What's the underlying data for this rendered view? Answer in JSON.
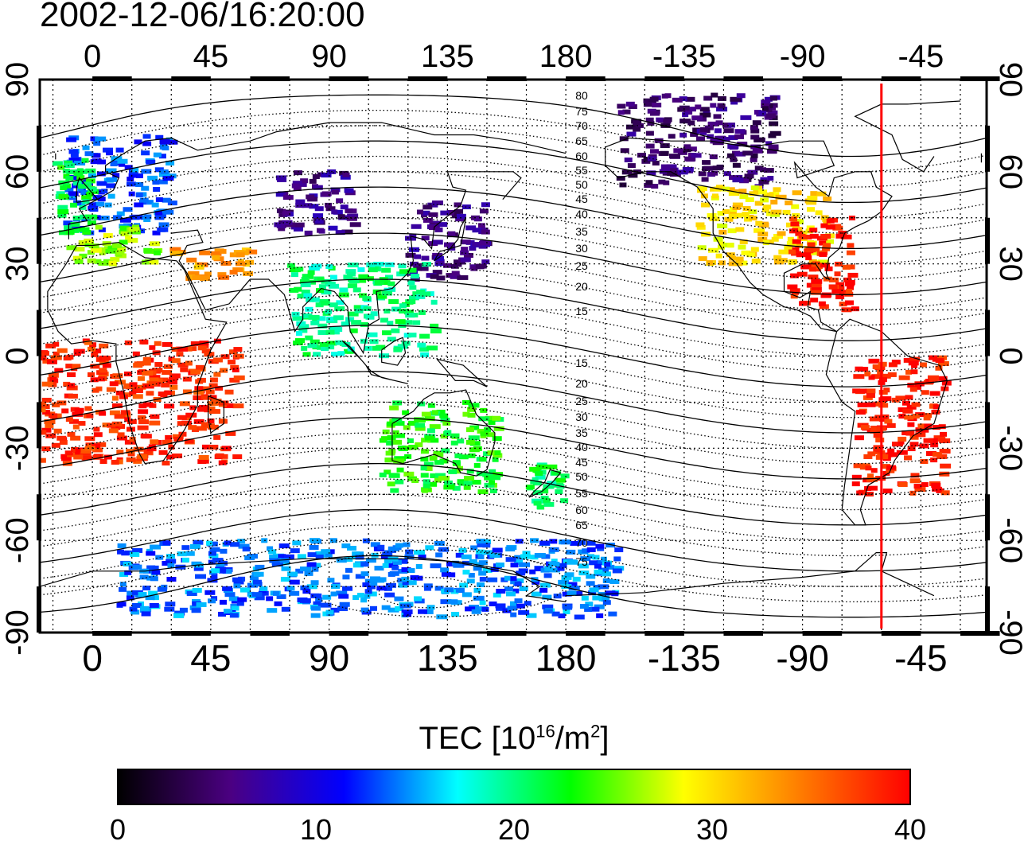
{
  "title": "2002-12-06/16:20:00",
  "map": {
    "projection": "equirectangular",
    "lon_range": [
      -20,
      340
    ],
    "lat_range": [
      -90,
      90
    ],
    "lon_ticks": [
      0,
      45,
      90,
      135,
      180,
      225,
      270,
      315
    ],
    "lon_tick_labels": [
      "0",
      "45",
      "90",
      "135",
      "180",
      "-135",
      "-90",
      "-45"
    ],
    "lat_ticks": [
      -90,
      -60,
      -30,
      0,
      30,
      60,
      90
    ],
    "lat_tick_labels": [
      "-90",
      "-60",
      "-30",
      "0",
      "30",
      "60",
      "90"
    ],
    "grid": "dotted 15-degree",
    "marker_longitude": 300,
    "marker_color": "#ff0000",
    "magnetic_latitude_labels": [
      "80",
      "75",
      "70",
      "65",
      "60",
      "55",
      "50",
      "45",
      "40",
      "35",
      "30",
      "25",
      "20",
      "15",
      "15",
      "20",
      "25",
      "30",
      "35",
      "40",
      "45",
      "50",
      "55",
      "60",
      "65",
      "70",
      "75"
    ]
  },
  "colorbar": {
    "label_text": "TEC  [10",
    "label_exp1": "16",
    "label_mid": "/m",
    "label_exp2": "2",
    "label_end": "]",
    "min": 0,
    "max": 40,
    "ticks": [
      "0",
      "10",
      "20",
      "30",
      "40"
    ],
    "colormap": [
      "#000000",
      "#4b0082",
      "#0000ff",
      "#00ffff",
      "#00ff00",
      "#ffff00",
      "#ff8000",
      "#ff0000"
    ]
  },
  "chart_data": {
    "type": "heatmap",
    "title": "2002-12-06/16:20:00",
    "value_label": "TEC [10^16/m^2]",
    "value_range": [
      0,
      40
    ],
    "regions": [
      {
        "lon_range": [
          -10,
          30
        ],
        "lat_range": [
          40,
          72
        ],
        "tec": 13
      },
      {
        "lon_range": [
          -15,
          0
        ],
        "lat_range": [
          40,
          65
        ],
        "tec": 22
      },
      {
        "lon_range": [
          -10,
          25
        ],
        "lat_range": [
          30,
          42
        ],
        "tec": 26
      },
      {
        "lon_range": [
          30,
          60
        ],
        "lat_range": [
          25,
          35
        ],
        "tec": 33
      },
      {
        "lon_range": [
          70,
          100
        ],
        "lat_range": [
          40,
          60
        ],
        "tec": 6
      },
      {
        "lon_range": [
          120,
          150
        ],
        "lat_range": [
          25,
          50
        ],
        "tec": 6
      },
      {
        "lon_range": [
          75,
          130
        ],
        "lat_range": [
          0,
          30
        ],
        "tec": 20
      },
      {
        "lon_range": [
          -20,
          55
        ],
        "lat_range": [
          -35,
          5
        ],
        "tec": 38
      },
      {
        "lon_range": [
          110,
          155
        ],
        "lat_range": [
          -45,
          -15
        ],
        "tec": 23
      },
      {
        "lon_range": [
          165,
          180
        ],
        "lat_range": [
          -50,
          -35
        ],
        "tec": 21
      },
      {
        "lon_range": [
          200,
          260
        ],
        "lat_range": [
          55,
          85
        ],
        "tec": 5
      },
      {
        "lon_range": [
          230,
          280
        ],
        "lat_range": [
          30,
          55
        ],
        "tec": 30
      },
      {
        "lon_range": [
          265,
          290
        ],
        "lat_range": [
          15,
          45
        ],
        "tec": 39
      },
      {
        "lon_range": [
          290,
          325
        ],
        "lat_range": [
          -45,
          0
        ],
        "tec": 39
      },
      {
        "lon_range": [
          10,
          200
        ],
        "lat_range": [
          -85,
          -60
        ],
        "tec": 14
      }
    ]
  }
}
